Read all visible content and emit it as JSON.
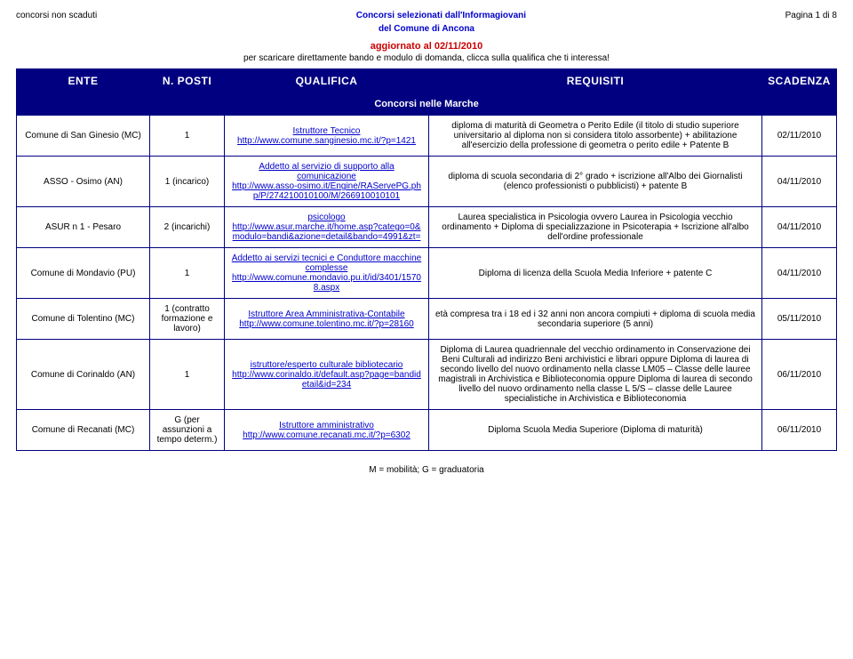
{
  "top": {
    "left": "concorsi non scaduti",
    "center_line1": "Concorsi selezionati dall'Informagiovani",
    "center_line2": "del Comune di Ancona",
    "right": "Pagina 1 di 8"
  },
  "updated": "aggiornato al 02/11/2010",
  "instruction": "per scaricare direttamente bando e modulo di domanda, clicca sulla qualifica che ti interessa!",
  "headers": {
    "ente": "ENTE",
    "posti": "N. POSTI",
    "qualifica": "QUALIFICA",
    "requisiti": "REQUISITI",
    "scadenza": "SCADENZA"
  },
  "section_title": "Concorsi nelle Marche",
  "rows": [
    {
      "ente": "Comune di San Ginesio (MC)",
      "posti": "1",
      "qual_label": "Istruttore Tecnico",
      "qual_url": "http://www.comune.sanginesio.mc.it/?p=1421",
      "req": "diploma di maturità di Geometra o Perito Edile (il titolo di studio superiore universitario al diploma non si considera titolo assorbente) + abilitazione all'esercizio della professione di geometra o perito edile + Patente B",
      "scad": "02/11/2010"
    },
    {
      "ente": "ASSO - Osimo (AN)",
      "posti": "1 (incarico)",
      "qual_label": "Addetto al servizio di supporto alla comunicazione",
      "qual_url": "http://www.asso-osimo.it/Engine/RAServePG.php/P/274210010100/M/266910010101",
      "req": "diploma di scuola secondaria di 2° grado + iscrizione all'Albo dei Giornalisti (elenco professionisti o pubblicisti) + patente B",
      "scad": "04/11/2010"
    },
    {
      "ente": "ASUR n 1 - Pesaro",
      "posti": "2 (incarichi)",
      "qual_label": "psicologo",
      "qual_url": "http://www.asur.marche.it/home.asp?catego=0&modulo=bandi&azione=detail&bando=4991&zt=",
      "req": "Laurea specialistica in Psicologia ovvero Laurea in Psicologia vecchio ordinamento + Diploma di specializzazione in Psicoterapia + Iscrizione all'albo dell'ordine professionale",
      "scad": "04/11/2010"
    },
    {
      "ente": "Comune di Mondavio (PU)",
      "posti": "1",
      "qual_label": "Addetto ai servizi tecnici e Conduttore macchine complesse",
      "qual_url": "http://www.comune.mondavio.pu.it/id/3401/15708.aspx",
      "req": "Diploma di licenza della Scuola Media Inferiore + patente C",
      "scad": "04/11/2010"
    },
    {
      "ente": "Comune di Tolentino (MC)",
      "posti": "1 (contratto formazione e lavoro)",
      "qual_label": "Istruttore Area Amministrativa-Contabile",
      "qual_url": "http://www.comune.tolentino.mc.it/?p=28160",
      "req": "età compresa tra i 18 ed i 32 anni non ancora compiuti + diploma di scuola media secondaria superiore (5 anni)",
      "scad": "05/11/2010"
    },
    {
      "ente": "Comune di Corinaldo (AN)",
      "posti": "1",
      "qual_label": "istruttore/esperto culturale bibliotecario",
      "qual_url": "http://www.corinaldo.it/default.asp?page=bandidetail&id=234",
      "req": "Diploma di Laurea quadriennale del vecchio ordinamento in Conservazione dei Beni Culturali ad indirizzo Beni archivistici e librari oppure Diploma di laurea di secondo livello del nuovo ordinamento nella classe LM05 – Classe delle lauree magistrali in Archivistica e Biblioteconomia oppure Diploma di laurea di secondo livello del nuovo ordinamento nella classe L 5/S – classe delle Lauree specialistiche in Archivistica e Biblioteconomia",
      "scad": "06/11/2010"
    },
    {
      "ente": "Comune di Recanati (MC)",
      "posti": "G (per assunzioni a tempo determ.)",
      "qual_label": "Istruttore amministrativo",
      "qual_url": "http://www.comune.recanati.mc.it/?p=6302",
      "req": "Diploma Scuola Media Superiore (Diploma di maturità)",
      "scad": "06/11/2010"
    }
  ],
  "footer": "M = mobilità; G = graduatoria"
}
